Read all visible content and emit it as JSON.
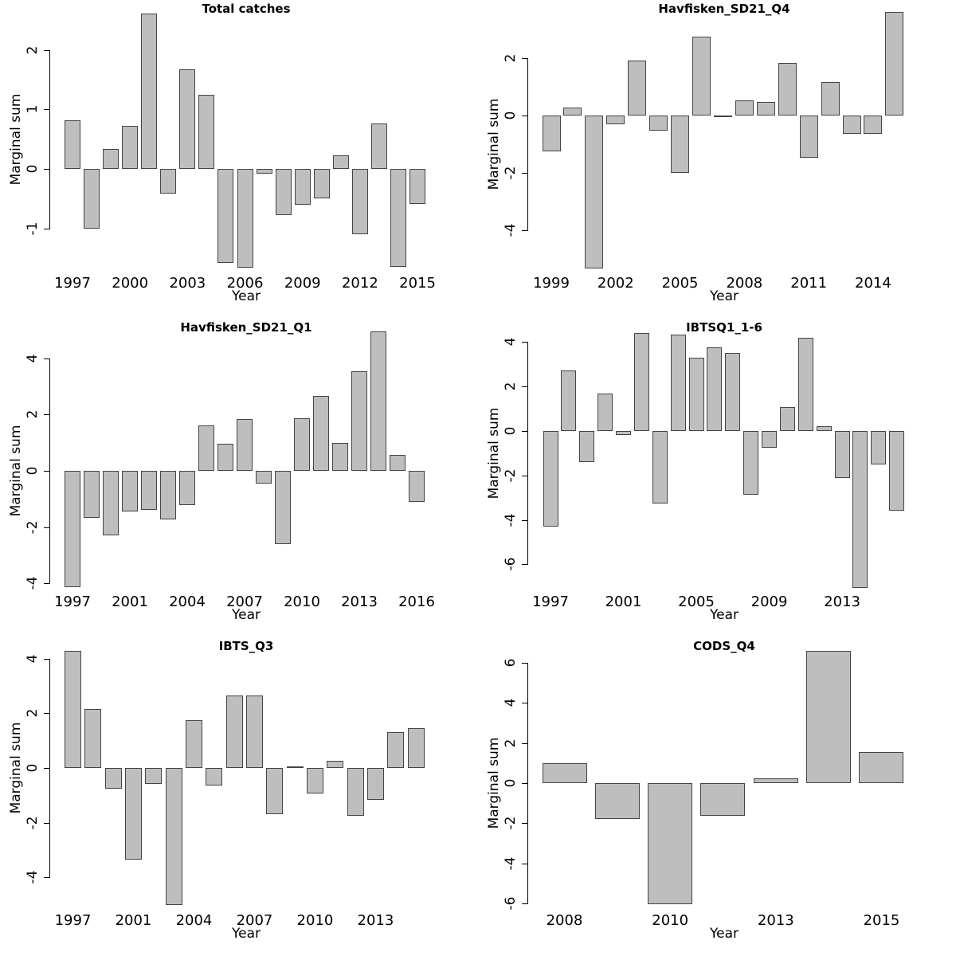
{
  "chart_data": {
    "type": "bar",
    "bar_color": "#bebebe",
    "bar_border": "#444444",
    "panels": [
      {
        "title": "Total catches",
        "xlabel": "Year",
        "ylabel": "Marginal sum",
        "yticks": [
          2,
          1,
          0,
          -1
        ],
        "xticks": [
          {
            "i": 0,
            "label": "1997"
          },
          {
            "i": 3,
            "label": "2000"
          },
          {
            "i": 6,
            "label": "2003"
          },
          {
            "i": 9,
            "label": "2006"
          },
          {
            "i": 12,
            "label": "2009"
          },
          {
            "i": 15,
            "label": "2012"
          },
          {
            "i": 18,
            "label": "2015"
          }
        ],
        "values": [
          0.81,
          -1.01,
          0.33,
          0.72,
          2.61,
          -0.42,
          1.67,
          1.24,
          -1.58,
          -1.66,
          -0.08,
          -0.77,
          -0.6,
          -0.5,
          0.23,
          -1.1,
          0.76,
          -1.65,
          -0.59
        ]
      },
      {
        "title": "Havfisken_SD21_Q4",
        "xlabel": "Year",
        "ylabel": "Marginal sum",
        "yticks": [
          2,
          0,
          -2,
          -4
        ],
        "xticks": [
          {
            "i": 0,
            "label": "1999"
          },
          {
            "i": 3,
            "label": "2002"
          },
          {
            "i": 6,
            "label": "2005"
          },
          {
            "i": 9,
            "label": "2008"
          },
          {
            "i": 12,
            "label": "2011"
          },
          {
            "i": 15,
            "label": "2014"
          }
        ],
        "values": [
          -1.24,
          0.28,
          -5.33,
          -0.3,
          1.92,
          -0.52,
          -2.0,
          2.75,
          -0.06,
          0.53,
          0.48,
          1.83,
          -1.47,
          1.17,
          -0.64,
          -0.63,
          3.61
        ]
      },
      {
        "title": "Havfisken_SD21_Q1",
        "xlabel": "Year",
        "ylabel": "Marginal sum",
        "yticks": [
          4,
          2,
          0,
          -2,
          -4
        ],
        "xticks": [
          {
            "i": 0,
            "label": "1997"
          },
          {
            "i": 3,
            "label": "2001"
          },
          {
            "i": 6,
            "label": "2004"
          },
          {
            "i": 9,
            "label": "2007"
          },
          {
            "i": 12,
            "label": "2010"
          },
          {
            "i": 15,
            "label": "2013"
          },
          {
            "i": 18,
            "label": "2016"
          }
        ],
        "values": [
          -4.12,
          -1.67,
          -2.3,
          -1.45,
          -1.38,
          -1.73,
          -1.22,
          1.6,
          0.97,
          1.85,
          -0.45,
          -2.59,
          1.88,
          2.67,
          0.99,
          3.55,
          4.95,
          0.57,
          -1.1
        ]
      },
      {
        "title": "IBTSQ1_1-6",
        "xlabel": "Year",
        "ylabel": "Marginal sum",
        "yticks": [
          4,
          2,
          0,
          -2,
          -4,
          -6
        ],
        "xticks": [
          {
            "i": 0,
            "label": "1997"
          },
          {
            "i": 4,
            "label": "2001"
          },
          {
            "i": 8,
            "label": "2005"
          },
          {
            "i": 12,
            "label": "2009"
          },
          {
            "i": 16,
            "label": "2013"
          }
        ],
        "values": [
          -4.3,
          2.72,
          -1.4,
          1.7,
          -0.18,
          4.41,
          -3.25,
          4.34,
          3.3,
          3.78,
          3.5,
          -2.85,
          -0.75,
          1.06,
          4.2,
          0.21,
          -2.11,
          -7.06,
          -1.5,
          -3.58
        ]
      },
      {
        "title": "IBTS_Q3",
        "xlabel": "Year",
        "ylabel": "Marginal sum",
        "yticks": [
          4,
          2,
          0,
          -2,
          -4
        ],
        "xticks": [
          {
            "i": 0,
            "label": "1997"
          },
          {
            "i": 3,
            "label": "2001"
          },
          {
            "i": 6,
            "label": "2004"
          },
          {
            "i": 9,
            "label": "2007"
          },
          {
            "i": 12,
            "label": "2010"
          },
          {
            "i": 15,
            "label": "2013"
          }
        ],
        "values": [
          4.29,
          2.15,
          -0.76,
          -3.35,
          -0.58,
          -5.0,
          1.75,
          -0.65,
          2.65,
          2.65,
          -1.69,
          0.05,
          -0.93,
          0.25,
          -1.75,
          -1.17,
          1.3,
          1.45
        ]
      },
      {
        "title": "CODS_Q4",
        "xlabel": "Year",
        "ylabel": "Marginal sum",
        "yticks": [
          6,
          4,
          2,
          0,
          -2,
          -4,
          -6
        ],
        "xticks": [
          {
            "i": 0,
            "label": "2008"
          },
          {
            "i": 2,
            "label": "2010"
          },
          {
            "i": 4,
            "label": "2013"
          },
          {
            "i": 6,
            "label": "2015"
          }
        ],
        "values": [
          1.0,
          -1.79,
          -6.05,
          -1.63,
          0.25,
          6.6,
          1.54
        ]
      }
    ]
  }
}
